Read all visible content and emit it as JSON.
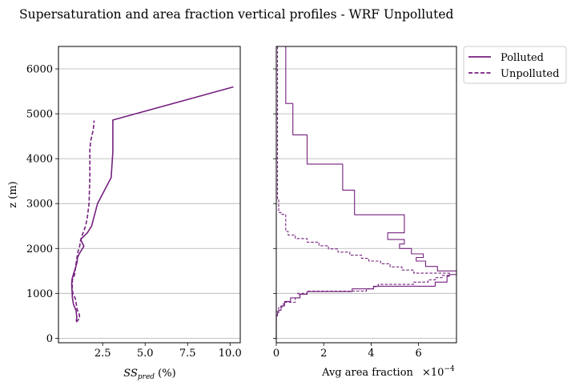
{
  "chart_data": {
    "suptitle": "Supersaturation and area fraction vertical profiles - WRF Unpolluted",
    "type": "line",
    "color": "#75207f",
    "legend": {
      "placement": "outside upper right",
      "entries": [
        {
          "label": "Polluted",
          "style": "solid"
        },
        {
          "label": "Unpolluted",
          "style": "dashed"
        }
      ]
    },
    "panels": [
      {
        "id": "supersaturation",
        "type": "line",
        "ylabel": "z (m)",
        "xlabel_main": "SS",
        "xlabel_sub": "pred",
        "xlabel_tail": " (%)",
        "xlim": [
          -0.1,
          10.6
        ],
        "ylim": [
          -100,
          6500
        ],
        "xticks": [
          2.5,
          5.0,
          7.5,
          10.0
        ],
        "xtick_labels": [
          "2.5",
          "5.0",
          "7.5",
          "10.0"
        ],
        "yticks": [
          0,
          1000,
          2000,
          3000,
          4000,
          5000,
          6000
        ],
        "ytick_labels": [
          "0",
          "1000",
          "2000",
          "3000",
          "4000",
          "5000",
          "6000"
        ],
        "grid": "horizontal",
        "series": [
          {
            "name": "Polluted",
            "style": "solid",
            "points": [
              [
                0.95,
                380
              ],
              [
                0.98,
                480
              ],
              [
                0.93,
                620
              ],
              [
                0.78,
                760
              ],
              [
                0.72,
                900
              ],
              [
                0.7,
                1050
              ],
              [
                0.68,
                1200
              ],
              [
                0.7,
                1320
              ],
              [
                0.78,
                1430
              ],
              [
                0.9,
                1560
              ],
              [
                1.0,
                1700
              ],
              [
                1.02,
                1800
              ],
              [
                1.15,
                1900
              ],
              [
                1.4,
                2050
              ],
              [
                1.2,
                2200
              ],
              [
                1.6,
                2350
              ],
              [
                1.85,
                2500
              ],
              [
                2.2,
                3000
              ],
              [
                3.0,
                3580
              ],
              [
                3.1,
                4150
              ],
              [
                3.1,
                4860
              ],
              [
                10.2,
                5600
              ]
            ]
          },
          {
            "name": "Unpolluted",
            "style": "dashed",
            "points": [
              [
                0.95,
                360
              ],
              [
                1.15,
                450
              ],
              [
                1.12,
                540
              ],
              [
                1.0,
                640
              ],
              [
                0.95,
                760
              ],
              [
                0.9,
                880
              ],
              [
                0.75,
                1000
              ],
              [
                0.7,
                1100
              ],
              [
                0.72,
                1200
              ],
              [
                0.72,
                1300
              ],
              [
                0.85,
                1420
              ],
              [
                0.9,
                1560
              ],
              [
                0.95,
                1700
              ],
              [
                1.0,
                1820
              ],
              [
                1.05,
                1930
              ],
              [
                1.15,
                2050
              ],
              [
                1.2,
                2180
              ],
              [
                1.3,
                2300
              ],
              [
                1.5,
                2500
              ],
              [
                1.6,
                2700
              ],
              [
                1.7,
                3000
              ],
              [
                1.75,
                3600
              ],
              [
                1.75,
                4200
              ],
              [
                1.8,
                4400
              ],
              [
                1.95,
                4650
              ],
              [
                2.0,
                4850
              ]
            ]
          }
        ]
      },
      {
        "id": "area-fraction",
        "type": "step",
        "xlabel": "Avg area fraction",
        "offset_text_base": "×10",
        "offset_text_exp": "−4",
        "xlim": [
          0,
          7.6
        ],
        "ylim": [
          -100,
          6500
        ],
        "xticks": [
          0,
          2,
          4,
          6
        ],
        "xtick_labels": [
          "0",
          "2",
          "4",
          "6"
        ],
        "yticks": [
          0,
          1000,
          2000,
          3000,
          4000,
          5000,
          6000
        ],
        "grid": "horizontal",
        "series": [
          {
            "name": "Polluted",
            "style": "solid",
            "steps": [
              [
                0.0,
                0
              ],
              [
                0.05,
                500
              ],
              [
                0.1,
                570
              ],
              [
                0.2,
                620
              ],
              [
                0.35,
                720
              ],
              [
                0.6,
                820
              ],
              [
                1.0,
                900
              ],
              [
                1.3,
                980
              ],
              [
                3.2,
                1040
              ],
              [
                4.1,
                1100
              ],
              [
                6.7,
                1160
              ],
              [
                7.2,
                1250
              ],
              [
                7.3,
                1380
              ],
              [
                7.6,
                1420
              ],
              [
                6.8,
                1500
              ],
              [
                6.3,
                1600
              ],
              [
                5.9,
                1720
              ],
              [
                6.2,
                1800
              ],
              [
                5.7,
                1880
              ],
              [
                5.2,
                2000
              ],
              [
                5.4,
                2100
              ],
              [
                4.7,
                2200
              ],
              [
                5.4,
                2350
              ],
              [
                3.3,
                2750
              ],
              [
                2.8,
                3300
              ],
              [
                1.3,
                3880
              ],
              [
                0.7,
                4530
              ],
              [
                0.4,
                5230
              ],
              [
                0.0,
                6500
              ]
            ]
          },
          {
            "name": "Unpolluted",
            "style": "dashed",
            "steps": [
              [
                0.0,
                0
              ],
              [
                0.1,
                600
              ],
              [
                0.3,
                700
              ],
              [
                0.8,
                800
              ],
              [
                1.0,
                900
              ],
              [
                0.9,
                970
              ],
              [
                1.3,
                1000
              ],
              [
                3.8,
                1050
              ],
              [
                4.1,
                1100
              ],
              [
                4.3,
                1150
              ],
              [
                5.8,
                1200
              ],
              [
                6.4,
                1250
              ],
              [
                6.7,
                1300
              ],
              [
                7.0,
                1350
              ],
              [
                7.3,
                1400
              ],
              [
                5.8,
                1450
              ],
              [
                5.3,
                1520
              ],
              [
                4.8,
                1590
              ],
              [
                4.4,
                1660
              ],
              [
                3.9,
                1720
              ],
              [
                3.6,
                1780
              ],
              [
                3.1,
                1850
              ],
              [
                2.6,
                1920
              ],
              [
                2.2,
                1990
              ],
              [
                1.8,
                2060
              ],
              [
                1.3,
                2140
              ],
              [
                0.8,
                2220
              ],
              [
                0.5,
                2300
              ],
              [
                0.4,
                2380
              ],
              [
                0.2,
                2760
              ],
              [
                0.1,
                2800
              ],
              [
                0.05,
                3100
              ],
              [
                0.0,
                6500
              ]
            ]
          }
        ]
      }
    ]
  }
}
